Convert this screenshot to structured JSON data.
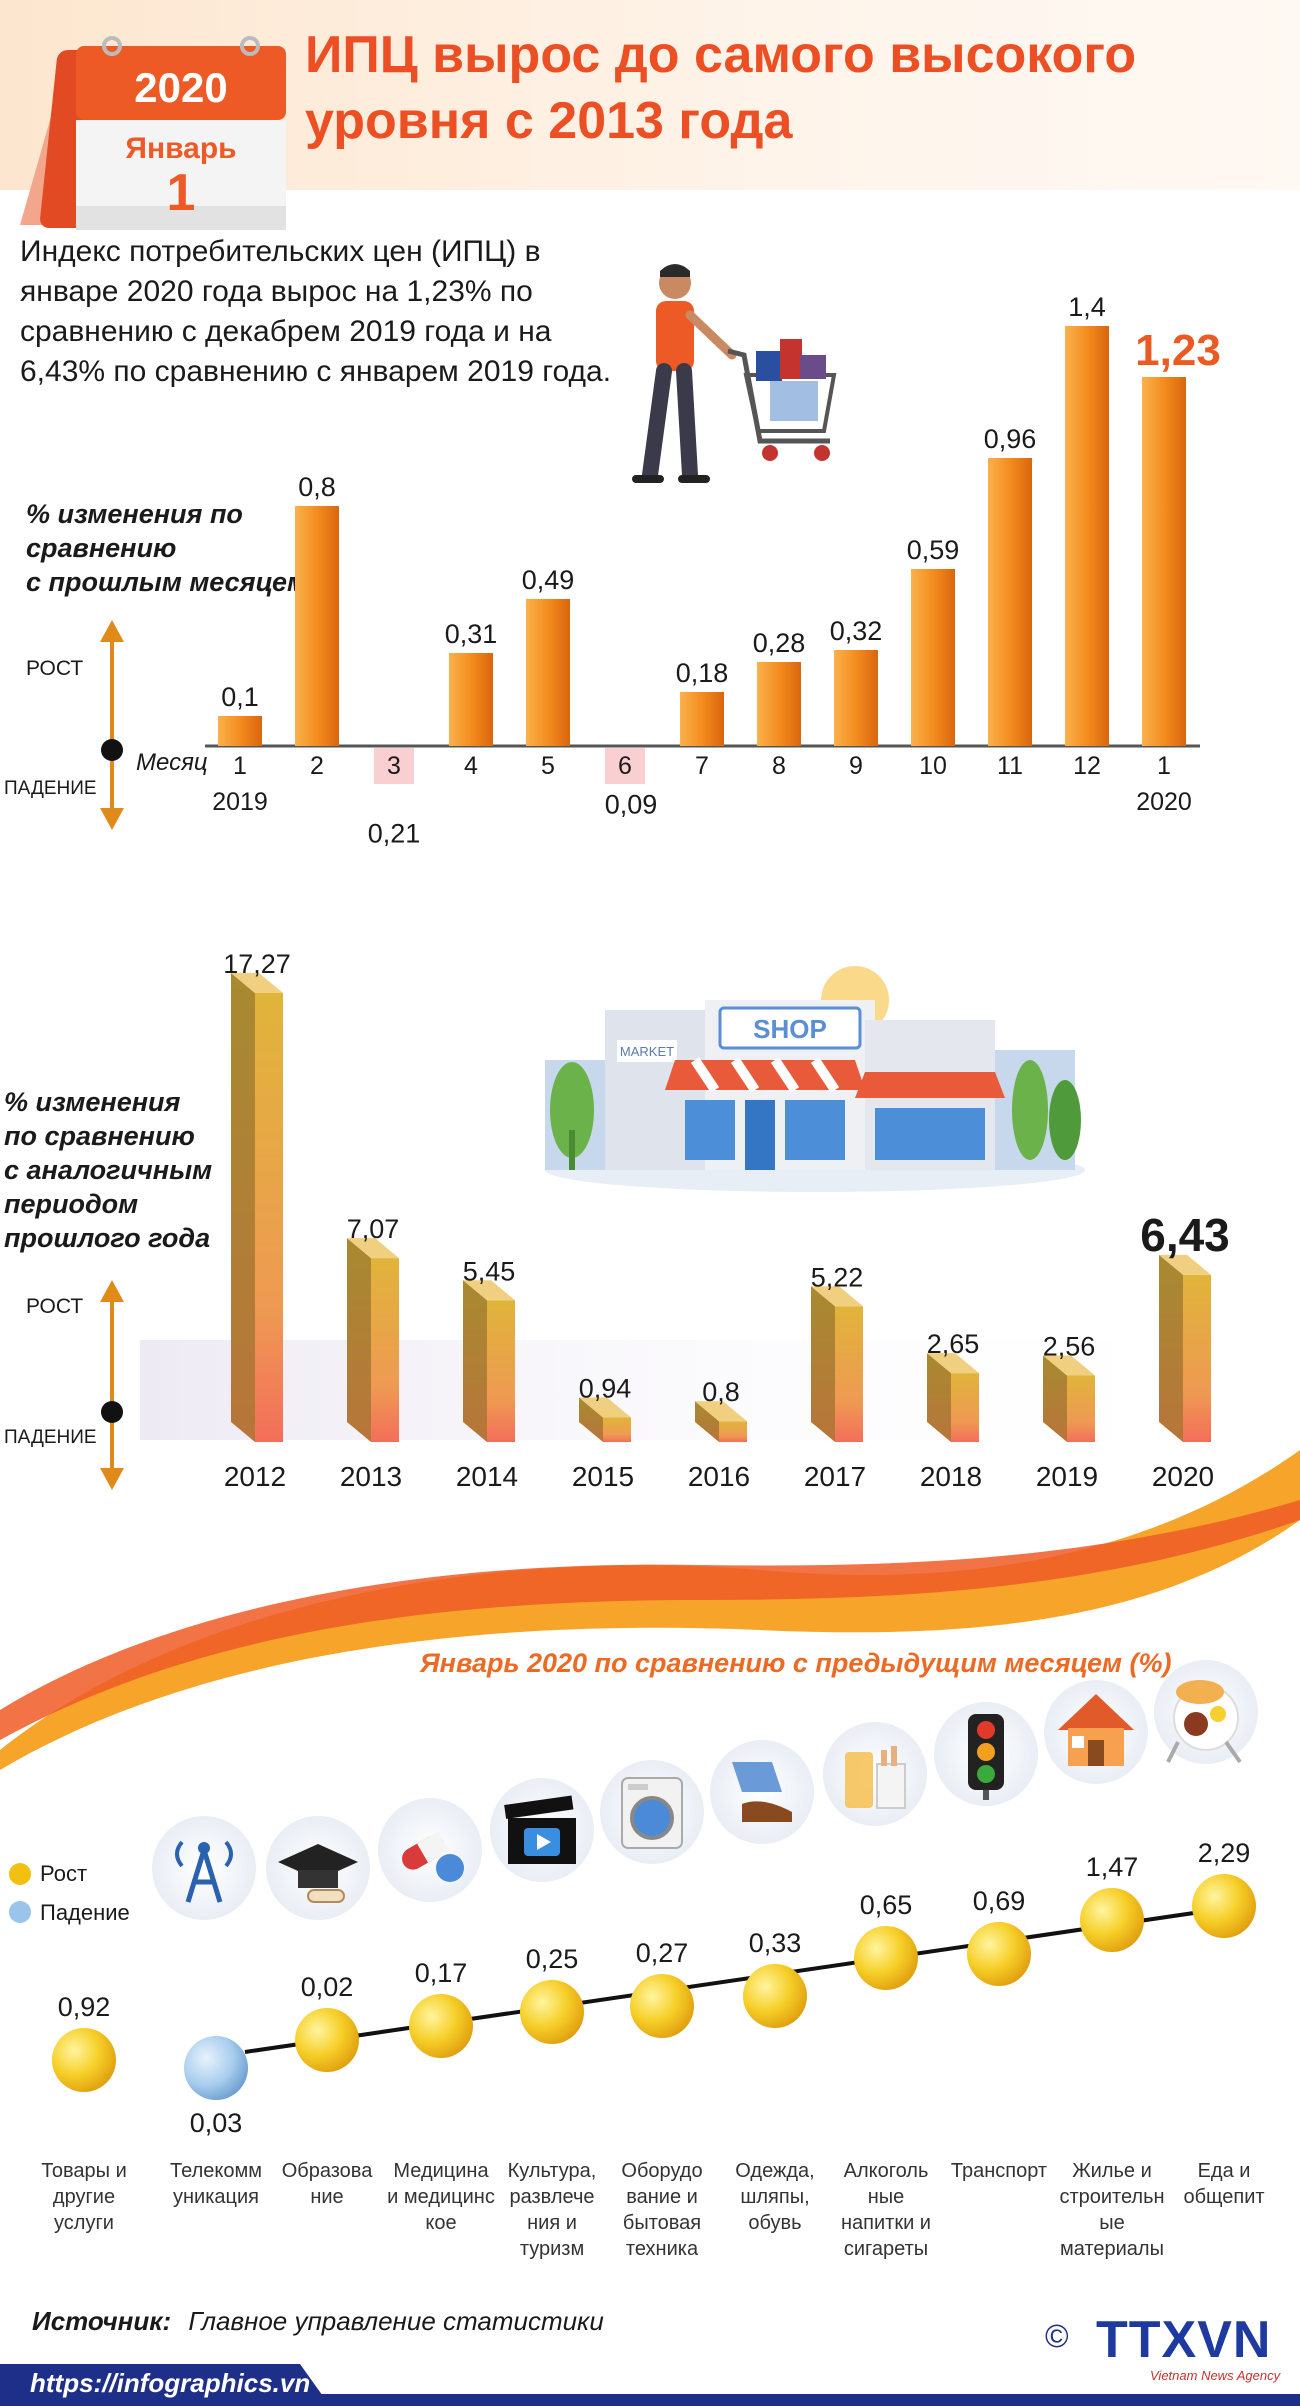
{
  "header": {
    "calendar_year": "2020",
    "calendar_month": "Январь",
    "calendar_day": "1",
    "title_line1": "ИПЦ вырос до самого высокого",
    "title_line2": "уровня с 2013 года"
  },
  "intro_text": "Индекс потребительских цен (ИПЦ) в январе 2020 года вырос на 1,23% по сравнению с декабрем 2019 года и на 6,43% по сравнению с январем 2019 года.",
  "labels": {
    "rise": "РОСТ",
    "fall": "ПАДЕНИЕ",
    "month_word": "Месяц",
    "caption_monthly_1": "% изменения по",
    "caption_monthly_2": "сравнению",
    "caption_monthly_3": "с прошлым месяцем",
    "caption_yearly_1": "% изменения",
    "caption_yearly_2": "по сравнению",
    "caption_yearly_3": "с аналогичным",
    "caption_yearly_4": "периодом",
    "caption_yearly_5": "прошлого года",
    "shop_sign": "SHOP",
    "market_sign": "MARKET"
  },
  "chart_data": [
    {
      "type": "bar",
      "categories": [
        "1",
        "2",
        "3",
        "4",
        "5",
        "6",
        "7",
        "8",
        "9",
        "10",
        "11",
        "12",
        "1"
      ],
      "year_labels": [
        "2019",
        "2020"
      ],
      "values": [
        0.1,
        0.8,
        -0.21,
        0.31,
        0.49,
        -0.09,
        0.18,
        0.28,
        0.32,
        0.59,
        0.96,
        1.4,
        1.23
      ],
      "value_labels": [
        "0,1",
        "0,8",
        "0,21",
        "0,31",
        "0,49",
        "0,09",
        "0,18",
        "0,28",
        "0,32",
        "0,59",
        "0,96",
        "1,4",
        "1,23"
      ],
      "colors": {
        "positive": "#f28a1e",
        "negative": "#f9cfd2",
        "highlight": "#ec5a24"
      }
    },
    {
      "type": "bar",
      "categories": [
        "2012",
        "2013",
        "2014",
        "2015",
        "2016",
        "2017",
        "2018",
        "2019",
        "2020"
      ],
      "values": [
        17.27,
        7.07,
        5.45,
        0.94,
        0.8,
        5.22,
        2.65,
        2.56,
        6.43
      ],
      "value_labels": [
        "17,27",
        "7,07",
        "5,45",
        "0,94",
        "0,8",
        "5,22",
        "2,65",
        "2,56",
        "6,43"
      ],
      "colors": {
        "top": "#f0d080",
        "side": "#d9a93a",
        "front": "#f08a50"
      }
    },
    {
      "type": "scatter",
      "title": "Январь 2020 по сравнению с предыдущим месяцем (%)",
      "legend": [
        {
          "name": "Рост",
          "color": "#f2c010"
        },
        {
          "name": "Падение",
          "color": "#9ac4ec"
        }
      ],
      "categories": [
        "Товары и другие услуги",
        "Телекомм уникация",
        "Образова ние",
        "Медицина и медицинс кое",
        "Культура, развлече ния и туризм",
        "Оборудо вание и бытовая техника",
        "Одежда, шляпы, обувь",
        "Алкоголь ные напитки и сигареты",
        "Транспорт",
        "Жилье и строительн ые материалы",
        "Еда и общепит"
      ],
      "values": [
        0.92,
        -0.03,
        0.02,
        0.17,
        0.25,
        0.27,
        0.33,
        0.65,
        0.69,
        1.47,
        2.29
      ],
      "value_labels": [
        "0,92",
        "0,03",
        "0,02",
        "0,17",
        "0,25",
        "0,27",
        "0,33",
        "0,65",
        "0,69",
        "1,47",
        "2,29"
      ],
      "icons": [
        "antenna-icon",
        "graduation-cap-icon",
        "pills-icon",
        "film-clapper-icon",
        "washing-machine-icon",
        "clothes-shoes-icon",
        "drinks-cigarettes-icon",
        "traffic-light-icon",
        "house-icon",
        "food-icon"
      ]
    }
  ],
  "footer": {
    "source_label": "Источник:",
    "source_text": "Главное управление статистики",
    "url": "https://infographics.vn",
    "copyright": "©",
    "brand": "TTXVN",
    "brand_sub": "Vietnam News Agency"
  }
}
